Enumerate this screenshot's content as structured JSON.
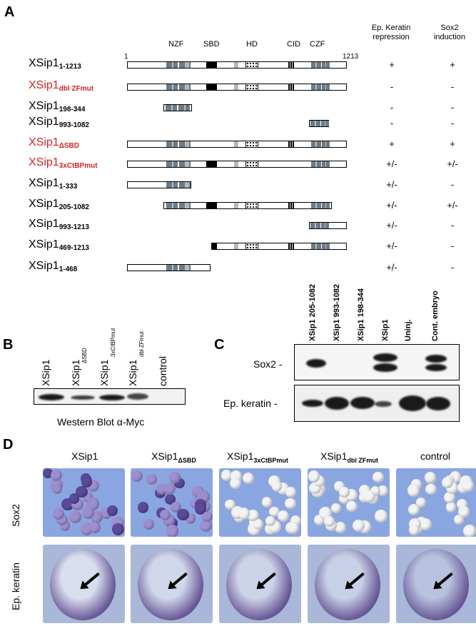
{
  "panelA": {
    "letter": "A",
    "col1": [
      "Ep. Keratin",
      "repression"
    ],
    "col2": [
      "Sox2",
      "induction"
    ],
    "domains": [
      "NZF",
      "SBD",
      "HD",
      "CID",
      "CZF"
    ],
    "scale_start": "1",
    "scale_end": "1213",
    "rows": [
      {
        "name": "XSip1",
        "sub": "1-1213",
        "red": false,
        "ker": "+",
        "sox": "+"
      },
      {
        "name": "XSip1",
        "sub": "dbl ZFmut",
        "red": true,
        "ker": "-",
        "sox": "-"
      },
      {
        "name": "XSip1",
        "sub": "198-344",
        "red": false,
        "ker": "-",
        "sox": "-"
      },
      {
        "name": "XSip1",
        "sub": "993-1082",
        "red": false,
        "ker": "-",
        "sox": "-"
      },
      {
        "name": "XSip1",
        "sub": "ΔSBD",
        "red": true,
        "ker": "+",
        "sox": "+"
      },
      {
        "name": "XSip1",
        "sub": "3xCtBPmut",
        "red": true,
        "ker": "+/-",
        "sox": "+/-"
      },
      {
        "name": "XSip1",
        "sub": "1-333",
        "red": false,
        "ker": "+/-",
        "sox": "-"
      },
      {
        "name": "XSip1",
        "sub": "205-1082",
        "red": false,
        "ker": "+/-",
        "sox": "+/-"
      },
      {
        "name": "XSip1",
        "sub": "993-1213",
        "red": false,
        "ker": "+/-",
        "sox": "-"
      },
      {
        "name": "XSip1",
        "sub": "469-1213",
        "red": false,
        "ker": "+/-",
        "sox": "-"
      },
      {
        "name": "XSip1",
        "sub": "1-468",
        "red": false,
        "ker": "+/-",
        "sox": "-"
      }
    ]
  },
  "panelB": {
    "letter": "B",
    "lanes": [
      {
        "main": "XSip1",
        "sub": ""
      },
      {
        "main": "XSip1",
        "sub": "ΔSBD"
      },
      {
        "main": "XSip1",
        "sub": "3xCtBPmut"
      },
      {
        "main": "XSip1",
        "sub": "dbl ZFmut"
      },
      {
        "main": "control",
        "sub": ""
      }
    ],
    "caption": "Western Blot  α-Myc"
  },
  "panelC": {
    "letter": "C",
    "lanes": [
      "XSip1 205-1082",
      "XSip1 993-1082",
      "XSip1 198-344",
      "XSip1",
      "Uninj.",
      "Cont. embryo"
    ],
    "row1": "Sox2 -",
    "row2": "Ep. keratin -"
  },
  "panelD": {
    "letter": "D",
    "columns": [
      {
        "main": "XSip1",
        "sub": ""
      },
      {
        "main": "XSip1",
        "sub": "ΔSBD"
      },
      {
        "main": "XSip1",
        "sub": "3xCtBPmut"
      },
      {
        "main": "XSip1",
        "sub": "dbl ZFmut"
      },
      {
        "main": "control",
        "sub": ""
      }
    ],
    "row1": "Sox2",
    "row2": "Ep. keratin"
  },
  "colors": {
    "red": "#d42222",
    "photo_bg": "#7f9bd9",
    "stain": "#3d2a6e"
  }
}
